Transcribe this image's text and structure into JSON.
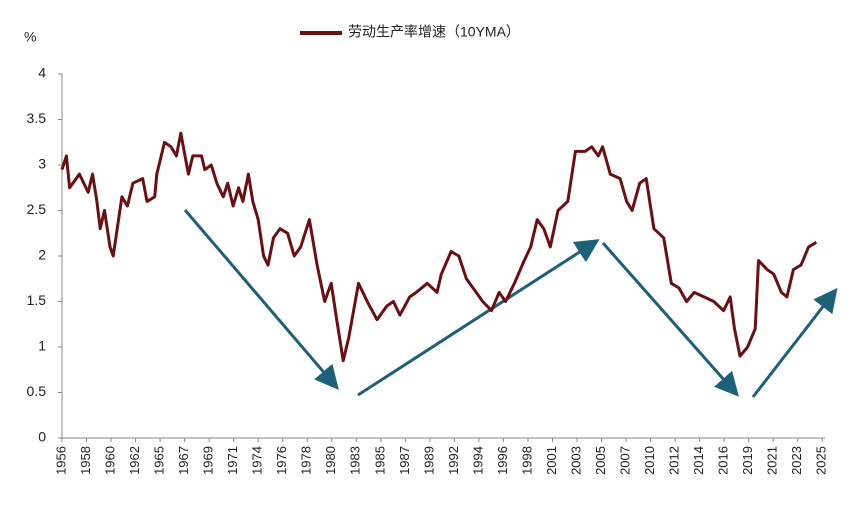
{
  "chart_data": {
    "type": "line",
    "legend": "劳动生产率增速（10YMA）",
    "y_unit": "%",
    "color": "#6b0f12",
    "xlim": [
      1956,
      2026
    ],
    "ylim": [
      0,
      4
    ],
    "yticks": [
      0,
      0.5,
      1,
      1.5,
      2,
      2.5,
      3,
      3.5,
      4
    ],
    "xticks": [
      {
        "value": 1956,
        "label": "1956"
      },
      {
        "value": 1958.25,
        "label": "1958"
      },
      {
        "value": 1960.5,
        "label": "1960"
      },
      {
        "value": 1962.75,
        "label": "1962"
      },
      {
        "value": 1965,
        "label": "1965"
      },
      {
        "value": 1967.25,
        "label": "1967"
      },
      {
        "value": 1969.5,
        "label": "1969"
      },
      {
        "value": 1971.75,
        "label": "1971"
      },
      {
        "value": 1974,
        "label": "1974"
      },
      {
        "value": 1976.25,
        "label": "1976"
      },
      {
        "value": 1978.5,
        "label": "1978"
      },
      {
        "value": 1980.75,
        "label": "1980"
      },
      {
        "value": 1983,
        "label": "1983"
      },
      {
        "value": 1985.25,
        "label": "1985"
      },
      {
        "value": 1987.5,
        "label": "1987"
      },
      {
        "value": 1989.75,
        "label": "1989"
      },
      {
        "value": 1992,
        "label": "1992"
      },
      {
        "value": 1994.25,
        "label": "1994"
      },
      {
        "value": 1996.5,
        "label": "1996"
      },
      {
        "value": 1998.75,
        "label": "1998"
      },
      {
        "value": 2001,
        "label": "2001"
      },
      {
        "value": 2003.25,
        "label": "2003"
      },
      {
        "value": 2005.5,
        "label": "2005"
      },
      {
        "value": 2007.75,
        "label": "2007"
      },
      {
        "value": 2010,
        "label": "2010"
      },
      {
        "value": 2012.25,
        "label": "2012"
      },
      {
        "value": 2014.5,
        "label": "2014"
      },
      {
        "value": 2016.75,
        "label": "2016"
      },
      {
        "value": 2019,
        "label": "2019"
      },
      {
        "value": 2021.25,
        "label": "2021"
      },
      {
        "value": 2023.5,
        "label": "2023"
      },
      {
        "value": 2025.75,
        "label": "2025"
      }
    ],
    "x": [
      1956,
      1956.4,
      1956.7,
      1957.6,
      1958.4,
      1958.8,
      1959.2,
      1959.5,
      1959.9,
      1960.4,
      1960.7,
      1961.5,
      1962,
      1962.5,
      1963.4,
      1963.8,
      1964.5,
      1964.7,
      1965.4,
      1966,
      1966.5,
      1966.9,
      1967.6,
      1968,
      1968.8,
      1969.1,
      1969.7,
      1970.2,
      1970.8,
      1971.2,
      1971.7,
      1972.2,
      1972.6,
      1973.1,
      1973.5,
      1974,
      1974.5,
      1974.9,
      1975.4,
      1976,
      1976.7,
      1977.3,
      1977.9,
      1978.7,
      1979.4,
      1980.1,
      1980.7,
      1981.2,
      1981.8,
      1982.3,
      1983.2,
      1984,
      1984.9,
      1985.8,
      1986.4,
      1987,
      1987.9,
      1988.5,
      1989.5,
      1990.4,
      1990.8,
      1991.7,
      1992.4,
      1993.1,
      1994,
      1994.6,
      1995.4,
      1996.1,
      1996.7,
      1997.5,
      1998.4,
      1999,
      1999.6,
      2000.2,
      2000.8,
      2001.5,
      2002.4,
      2003.1,
      2004,
      2004.6,
      2005.2,
      2005.6,
      2006.3,
      2007.2,
      2007.8,
      2008.3,
      2009,
      2009.6,
      2010.3,
      2011.2,
      2011.9,
      2012.6,
      2013.3,
      2014,
      2014.9,
      2015.8,
      2016.7,
      2017.3,
      2017.7,
      2018.2,
      2018.9,
      2019.6,
      2019.9,
      2020.7,
      2021.3,
      2022,
      2022.5,
      2023.1,
      2023.8,
      2024.5,
      2025.2
    ],
    "values": [
      2.95,
      3.1,
      2.75,
      2.9,
      2.7,
      2.9,
      2.6,
      2.3,
      2.5,
      2.1,
      2.0,
      2.65,
      2.55,
      2.8,
      2.85,
      2.6,
      2.65,
      2.9,
      3.25,
      3.2,
      3.1,
      3.35,
      2.9,
      3.1,
      3.1,
      2.95,
      3.0,
      2.8,
      2.65,
      2.8,
      2.55,
      2.75,
      2.6,
      2.9,
      2.6,
      2.4,
      2.0,
      1.9,
      2.2,
      2.3,
      2.25,
      2.0,
      2.1,
      2.4,
      1.9,
      1.5,
      1.7,
      1.3,
      0.85,
      1.1,
      1.7,
      1.5,
      1.3,
      1.45,
      1.5,
      1.35,
      1.55,
      1.6,
      1.7,
      1.6,
      1.8,
      2.05,
      2.0,
      1.75,
      1.6,
      1.5,
      1.4,
      1.6,
      1.5,
      1.7,
      1.95,
      2.1,
      2.4,
      2.3,
      2.1,
      2.5,
      2.6,
      3.15,
      3.15,
      3.2,
      3.1,
      3.2,
      2.9,
      2.85,
      2.6,
      2.5,
      2.8,
      2.85,
      2.3,
      2.2,
      1.7,
      1.65,
      1.5,
      1.6,
      1.55,
      1.5,
      1.4,
      1.55,
      1.2,
      0.9,
      1.0,
      1.2,
      1.95,
      1.85,
      1.8,
      1.6,
      1.55,
      1.85,
      1.9,
      2.1,
      2.15
    ]
  }
}
